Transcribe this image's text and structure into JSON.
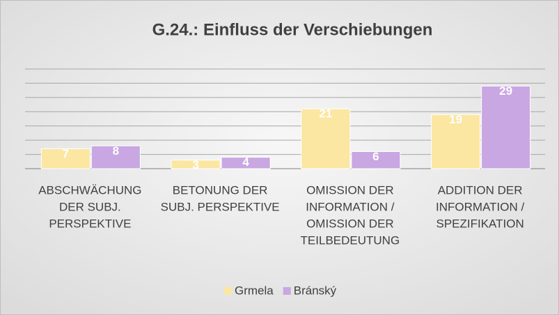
{
  "chart_data": {
    "type": "bar",
    "title": "G.24.: Einfluss der Verschiebungen",
    "categories": [
      [
        "ABSCHWÄCHUNG",
        "DER SUBJ.",
        "PERSPEKTIVE"
      ],
      [
        "BETONUNG DER",
        "SUBJ. PERSPEKTIVE"
      ],
      [
        "OMISSION DER",
        "INFORMATION /",
        "OMISSION DER",
        "TEILBEDEUTUNG"
      ],
      [
        "ADDITION DER",
        "INFORMATION /",
        "SPEZIFIKATION"
      ]
    ],
    "series": [
      {
        "name": "Grmela",
        "color": "#fbe6a2",
        "values": [
          7,
          3,
          21,
          19
        ]
      },
      {
        "name": "Bránský",
        "color": "#c9a7e2",
        "values": [
          8,
          4,
          6,
          29
        ]
      }
    ],
    "ylim": [
      0,
      35
    ],
    "yticks": [
      0,
      5,
      10,
      15,
      20,
      25,
      30,
      35
    ],
    "grid": true,
    "legend": "bottom"
  }
}
